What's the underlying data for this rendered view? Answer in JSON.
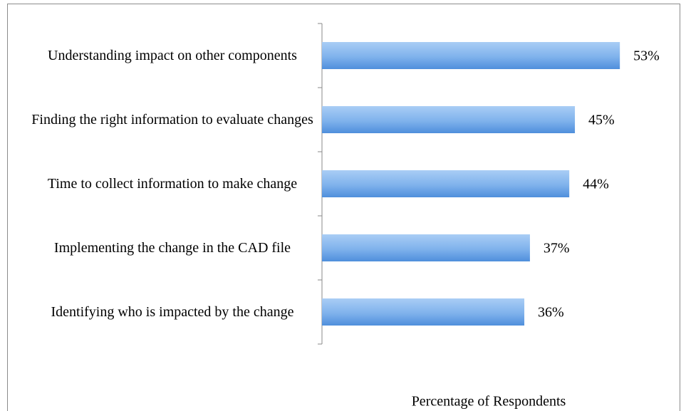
{
  "chart_data": {
    "type": "bar",
    "orientation": "horizontal",
    "categories": [
      "Understanding impact on other components",
      "Finding the right information to evaluate changes",
      "Time to collect information to make change",
      "Implementing the change in the CAD file",
      "Identifying who is impacted by the change"
    ],
    "values": [
      53,
      45,
      44,
      37,
      36
    ],
    "value_labels": [
      "53%",
      "45%",
      "44%",
      "37%",
      "36%"
    ],
    "xlabel": "Percentage of Respondents",
    "color": "#5b9bd5"
  }
}
